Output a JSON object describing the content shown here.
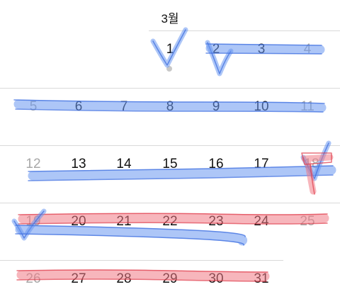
{
  "calendar": {
    "month_label": "3월",
    "weeks": [
      {
        "days": [
          {
            "label": "1",
            "weekend": false
          },
          {
            "label": "2",
            "weekend": false
          },
          {
            "label": "3",
            "weekend": false
          },
          {
            "label": "4",
            "weekend": true
          }
        ]
      },
      {
        "days": [
          {
            "label": "5",
            "weekend": true
          },
          {
            "label": "6",
            "weekend": false
          },
          {
            "label": "7",
            "weekend": false
          },
          {
            "label": "8",
            "weekend": false
          },
          {
            "label": "9",
            "weekend": false
          },
          {
            "label": "10",
            "weekend": false
          },
          {
            "label": "11",
            "weekend": true
          }
        ]
      },
      {
        "days": [
          {
            "label": "12",
            "weekend": true
          },
          {
            "label": "13",
            "weekend": false
          },
          {
            "label": "14",
            "weekend": false
          },
          {
            "label": "15",
            "weekend": false
          },
          {
            "label": "16",
            "weekend": false
          },
          {
            "label": "17",
            "weekend": false
          },
          {
            "label": "18",
            "weekend": true
          }
        ]
      },
      {
        "days": [
          {
            "label": "19",
            "weekend": true
          },
          {
            "label": "20",
            "weekend": false
          },
          {
            "label": "21",
            "weekend": false
          },
          {
            "label": "22",
            "weekend": false
          },
          {
            "label": "23",
            "weekend": false
          },
          {
            "label": "24",
            "weekend": false
          },
          {
            "label": "25",
            "weekend": true
          }
        ]
      },
      {
        "days": [
          {
            "label": "26",
            "weekend": true
          },
          {
            "label": "27",
            "weekend": false
          },
          {
            "label": "28",
            "weekend": false
          },
          {
            "label": "29",
            "weekend": false
          },
          {
            "label": "30",
            "weekend": false
          },
          {
            "label": "31",
            "weekend": false
          }
        ]
      }
    ],
    "today_indicator": "1"
  },
  "annotations": {
    "blue_color": "#6a98f0",
    "red_color": "#f07a85"
  }
}
